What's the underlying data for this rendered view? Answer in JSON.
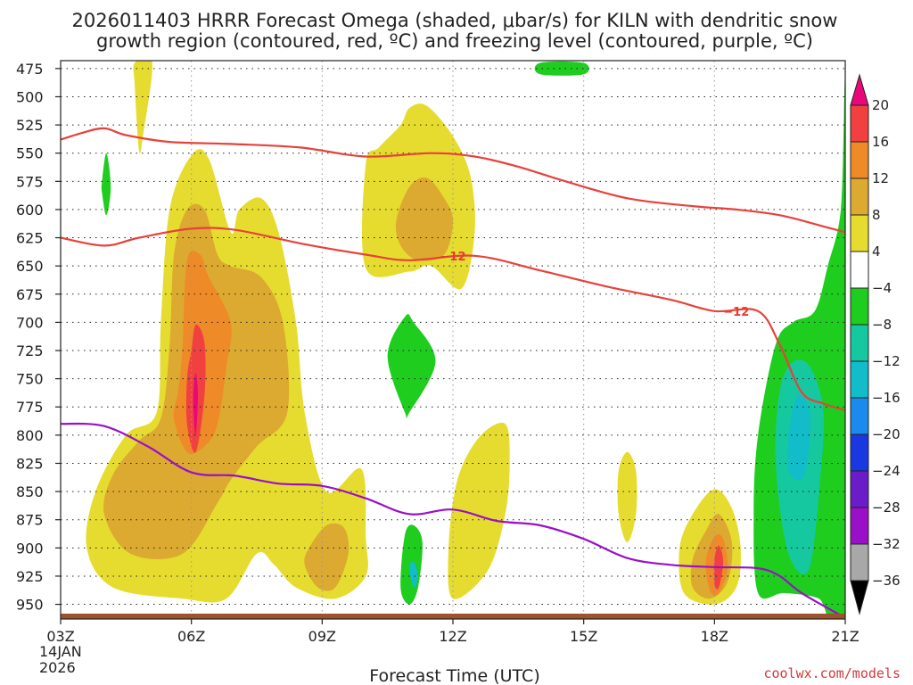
{
  "title": {
    "line1": "2026011403 HRRR Forecast Omega (shaded, μbar/s) for KILN with dendritic snow",
    "line2": "growth region (contoured, red, ºC) and freezing level (contoured, purple, ºC)"
  },
  "credit": "coolwx.com/models",
  "colors": {
    "dgz": "#e8413a",
    "freezing": "#9a10c8",
    "ground": "#a0522d"
  },
  "chart_data": {
    "type": "contour",
    "xlabel": "Forecast Time (UTC)",
    "ylabel": "",
    "x_ticks": [
      "03Z",
      "06Z",
      "09Z",
      "12Z",
      "15Z",
      "18Z",
      "21Z"
    ],
    "x_date_lines": [
      "14JAN",
      "2026"
    ],
    "x_range_hours_utc": [
      3,
      21
    ],
    "y_ticks": [
      475,
      500,
      525,
      550,
      575,
      600,
      625,
      650,
      675,
      700,
      725,
      750,
      775,
      800,
      825,
      850,
      875,
      900,
      925,
      950
    ],
    "y_range_hpa": [
      468,
      963
    ],
    "y_reversed": true,
    "grid": true,
    "colorbar": {
      "labels": [
        "20",
        "16",
        "12",
        "8",
        "4",
        "−4",
        "−8",
        "−12",
        "−16",
        "−20",
        "−24",
        "−28",
        "−32",
        "−36"
      ],
      "colors": [
        "#e8087a",
        "#f04040",
        "#ee8a28",
        "#dcaa30",
        "#e6dc30",
        "#ffffff",
        "#1ecd1e",
        "#16c8a0",
        "#12bcc8",
        "#1a8aee",
        "#1a38e0",
        "#6a1cc8",
        "#9a10c8",
        "#a8a8a8",
        "#000000"
      ]
    },
    "omega_regions": [
      {
        "value": 4,
        "color": "#e6dc30",
        "points": [
          [
            4.7,
            470
          ],
          [
            5.1,
            470
          ],
          [
            4.9,
            532
          ],
          [
            4.8,
            548
          ],
          [
            4.7,
            490
          ]
        ]
      },
      {
        "value": 4,
        "color": "#e6dc30",
        "points": [
          [
            5.5,
            600
          ],
          [
            6.0,
            552
          ],
          [
            6.4,
            555
          ],
          [
            6.9,
            620
          ],
          [
            7.1,
            600
          ],
          [
            7.6,
            590
          ],
          [
            8.0,
            620
          ],
          [
            8.4,
            700
          ],
          [
            8.6,
            780
          ],
          [
            9.1,
            850
          ],
          [
            9.9,
            830
          ],
          [
            10.0,
            890
          ],
          [
            10.0,
            925
          ],
          [
            9.3,
            945
          ],
          [
            8.4,
            935
          ],
          [
            7.9,
            915
          ],
          [
            7.5,
            905
          ],
          [
            6.8,
            945
          ],
          [
            5.8,
            945
          ],
          [
            4.2,
            935
          ],
          [
            3.6,
            900
          ],
          [
            3.8,
            850
          ],
          [
            4.5,
            800
          ],
          [
            5.2,
            780
          ],
          [
            5.3,
            700
          ]
        ]
      },
      {
        "value": 4,
        "color": "#e6dc30",
        "points": [
          [
            10.0,
            560
          ],
          [
            10.3,
            545
          ],
          [
            10.8,
            525
          ],
          [
            11.0,
            510
          ],
          [
            11.4,
            508
          ],
          [
            12.0,
            535
          ],
          [
            12.4,
            570
          ],
          [
            12.5,
            620
          ],
          [
            12.2,
            670
          ],
          [
            11.5,
            650
          ],
          [
            11.0,
            655
          ],
          [
            10.0,
            652
          ]
        ]
      },
      {
        "value": 4,
        "color": "#e6dc30",
        "points": [
          [
            12.1,
            840
          ],
          [
            12.6,
            802
          ],
          [
            13.2,
            790
          ],
          [
            13.3,
            825
          ],
          [
            13.2,
            870
          ],
          [
            12.8,
            920
          ],
          [
            12.0,
            945
          ],
          [
            11.9,
            900
          ]
        ]
      },
      {
        "value": 4,
        "color": "#e6dc30",
        "points": [
          [
            16.0,
            815
          ],
          [
            16.2,
            832
          ],
          [
            16.2,
            870
          ],
          [
            16.0,
            895
          ],
          [
            15.8,
            870
          ],
          [
            15.8,
            832
          ]
        ]
      },
      {
        "value": 4,
        "color": "#e6dc30",
        "points": [
          [
            17.2,
            900
          ],
          [
            17.5,
            870
          ],
          [
            18.0,
            848
          ],
          [
            18.4,
            865
          ],
          [
            18.6,
            900
          ],
          [
            18.5,
            935
          ],
          [
            18.0,
            950
          ],
          [
            17.3,
            940
          ]
        ]
      },
      {
        "value": 8,
        "color": "#dcaa30",
        "points": [
          [
            5.5,
            720
          ],
          [
            5.6,
            640
          ],
          [
            5.9,
            600
          ],
          [
            6.3,
            600
          ],
          [
            6.6,
            640
          ],
          [
            6.9,
            650
          ],
          [
            7.6,
            660
          ],
          [
            8.1,
            700
          ],
          [
            8.2,
            780
          ],
          [
            7.5,
            810
          ],
          [
            6.9,
            840
          ],
          [
            6.6,
            860
          ],
          [
            5.8,
            905
          ],
          [
            4.6,
            905
          ],
          [
            4.0,
            870
          ],
          [
            4.2,
            835
          ],
          [
            4.8,
            805
          ],
          [
            5.3,
            785
          ]
        ]
      },
      {
        "value": 8,
        "color": "#dcaa30",
        "points": [
          [
            10.7,
            610
          ],
          [
            11.0,
            580
          ],
          [
            11.4,
            572
          ],
          [
            11.8,
            590
          ],
          [
            12.0,
            610
          ],
          [
            11.8,
            640
          ],
          [
            11.2,
            645
          ],
          [
            10.8,
            632
          ]
        ]
      },
      {
        "value": 8,
        "color": "#dcaa30",
        "points": [
          [
            8.7,
            900
          ],
          [
            9.1,
            880
          ],
          [
            9.5,
            882
          ],
          [
            9.6,
            905
          ],
          [
            9.3,
            935
          ],
          [
            8.9,
            935
          ],
          [
            8.6,
            915
          ]
        ]
      },
      {
        "value": 8,
        "color": "#dcaa30",
        "points": [
          [
            17.5,
            910
          ],
          [
            17.8,
            885
          ],
          [
            18.1,
            870
          ],
          [
            18.4,
            895
          ],
          [
            18.3,
            930
          ],
          [
            17.9,
            945
          ],
          [
            17.5,
            935
          ]
        ]
      },
      {
        "value": 12,
        "color": "#ee8a28",
        "points": [
          [
            5.8,
            720
          ],
          [
            5.9,
            645
          ],
          [
            6.2,
            640
          ],
          [
            6.4,
            660
          ],
          [
            6.9,
            700
          ],
          [
            6.8,
            740
          ],
          [
            6.6,
            790
          ],
          [
            6.3,
            810
          ],
          [
            5.9,
            815
          ],
          [
            5.6,
            785
          ],
          [
            5.7,
            760
          ]
        ]
      },
      {
        "value": 12,
        "color": "#ee8a28",
        "points": [
          [
            17.8,
            912
          ],
          [
            18.0,
            890
          ],
          [
            18.2,
            892
          ],
          [
            18.3,
            918
          ],
          [
            18.1,
            940
          ],
          [
            17.9,
            938
          ]
        ]
      },
      {
        "value": 16,
        "color": "#f04040",
        "points": [
          [
            6.0,
            725
          ],
          [
            6.1,
            702
          ],
          [
            6.3,
            718
          ],
          [
            6.3,
            765
          ],
          [
            6.1,
            815
          ],
          [
            5.9,
            790
          ],
          [
            5.9,
            750
          ]
        ]
      },
      {
        "value": 16,
        "color": "#f04040",
        "points": [
          [
            18.0,
            910
          ],
          [
            18.1,
            898
          ],
          [
            18.2,
            912
          ],
          [
            18.1,
            935
          ],
          [
            18.0,
            932
          ]
        ]
      },
      {
        "value": 20,
        "color": "#e8087a",
        "points": [
          [
            6.05,
            760
          ],
          [
            6.1,
            745
          ],
          [
            6.15,
            765
          ],
          [
            6.1,
            800
          ],
          [
            6.05,
            780
          ]
        ]
      },
      {
        "value": -4,
        "color": "#1ecd1e",
        "points": [
          [
            14.0,
            470
          ],
          [
            15.0,
            470
          ],
          [
            15.0,
            480
          ],
          [
            14.0,
            480
          ]
        ]
      },
      {
        "value": -4,
        "color": "#1ecd1e",
        "points": [
          [
            3.95,
            575
          ],
          [
            4.05,
            550
          ],
          [
            4.15,
            580
          ],
          [
            4.05,
            605
          ],
          [
            3.95,
            585
          ]
        ]
      },
      {
        "value": -4,
        "color": "#1ecd1e",
        "points": [
          [
            10.5,
            730
          ],
          [
            10.9,
            695
          ],
          [
            11.1,
            700
          ],
          [
            11.6,
            735
          ],
          [
            11.0,
            780
          ],
          [
            10.9,
            780
          ]
        ]
      },
      {
        "value": -4,
        "color": "#1ecd1e",
        "points": [
          [
            10.9,
            888
          ],
          [
            11.1,
            880
          ],
          [
            11.3,
            895
          ],
          [
            11.2,
            935
          ],
          [
            11.0,
            950
          ],
          [
            10.8,
            935
          ]
        ]
      },
      {
        "value": -4,
        "color": "#1ecd1e",
        "points": [
          [
            20.6,
            650
          ],
          [
            20.9,
            600
          ],
          [
            21.0,
            500
          ],
          [
            21.0,
            963
          ],
          [
            20.4,
            945
          ],
          [
            19.6,
            940
          ],
          [
            19.0,
            940
          ],
          [
            18.9,
            870
          ],
          [
            19.0,
            800
          ],
          [
            19.4,
            720
          ],
          [
            19.8,
            700
          ],
          [
            20.3,
            690
          ]
        ]
      },
      {
        "value": -8,
        "color": "#16c8a0",
        "points": [
          [
            19.5,
            760
          ],
          [
            19.8,
            735
          ],
          [
            20.2,
            740
          ],
          [
            20.5,
            780
          ],
          [
            20.4,
            850
          ],
          [
            20.2,
            915
          ],
          [
            19.9,
            920
          ],
          [
            19.6,
            890
          ],
          [
            19.4,
            820
          ]
        ]
      },
      {
        "value": -12,
        "color": "#12bcc8",
        "points": [
          [
            19.7,
            800
          ],
          [
            19.9,
            765
          ],
          [
            20.2,
            780
          ],
          [
            20.1,
            830
          ],
          [
            19.9,
            840
          ],
          [
            19.7,
            830
          ]
        ]
      },
      {
        "value": -12,
        "color": "#12bcc8",
        "points": [
          [
            11.0,
            918
          ],
          [
            11.1,
            912
          ],
          [
            11.2,
            925
          ],
          [
            11.1,
            935
          ]
        ]
      }
    ],
    "dgz_upper": {
      "label": "",
      "x": [
        3.0,
        3.5,
        4.0,
        4.5,
        5.5,
        7.0,
        8.5,
        10.0,
        11.5,
        12.5,
        13.5,
        14.5,
        16.0,
        17.5,
        18.5,
        19.5,
        20.5,
        21.0
      ],
      "y": [
        538,
        532,
        528,
        534,
        540,
        542,
        545,
        553,
        550,
        553,
        562,
        574,
        590,
        597,
        600,
        605,
        615,
        620
      ]
    },
    "dgz_lower": {
      "label": "−12",
      "x": [
        3.0,
        4.0,
        4.8,
        6.0,
        7.0,
        8.5,
        10.0,
        11.0,
        12.5,
        14.0,
        15.5,
        17.0,
        18.0,
        19.0,
        19.5,
        20.0,
        20.5,
        21.0
      ],
      "y": [
        625,
        632,
        625,
        617,
        618,
        630,
        640,
        645,
        641,
        654,
        668,
        680,
        690,
        690,
        720,
        762,
        772,
        778
      ]
    },
    "freezing_level": {
      "label": "",
      "x": [
        3.0,
        4.0,
        5.0,
        6.0,
        7.0,
        8.0,
        9.0,
        10.0,
        11.0,
        12.0,
        13.0,
        14.0,
        15.0,
        16.0,
        17.0,
        18.0,
        19.0,
        19.5,
        20.0,
        21.0
      ],
      "y": [
        790,
        792,
        810,
        833,
        836,
        843,
        845,
        856,
        870,
        866,
        876,
        880,
        892,
        909,
        915,
        917,
        918,
        925,
        940,
        962
      ]
    }
  }
}
